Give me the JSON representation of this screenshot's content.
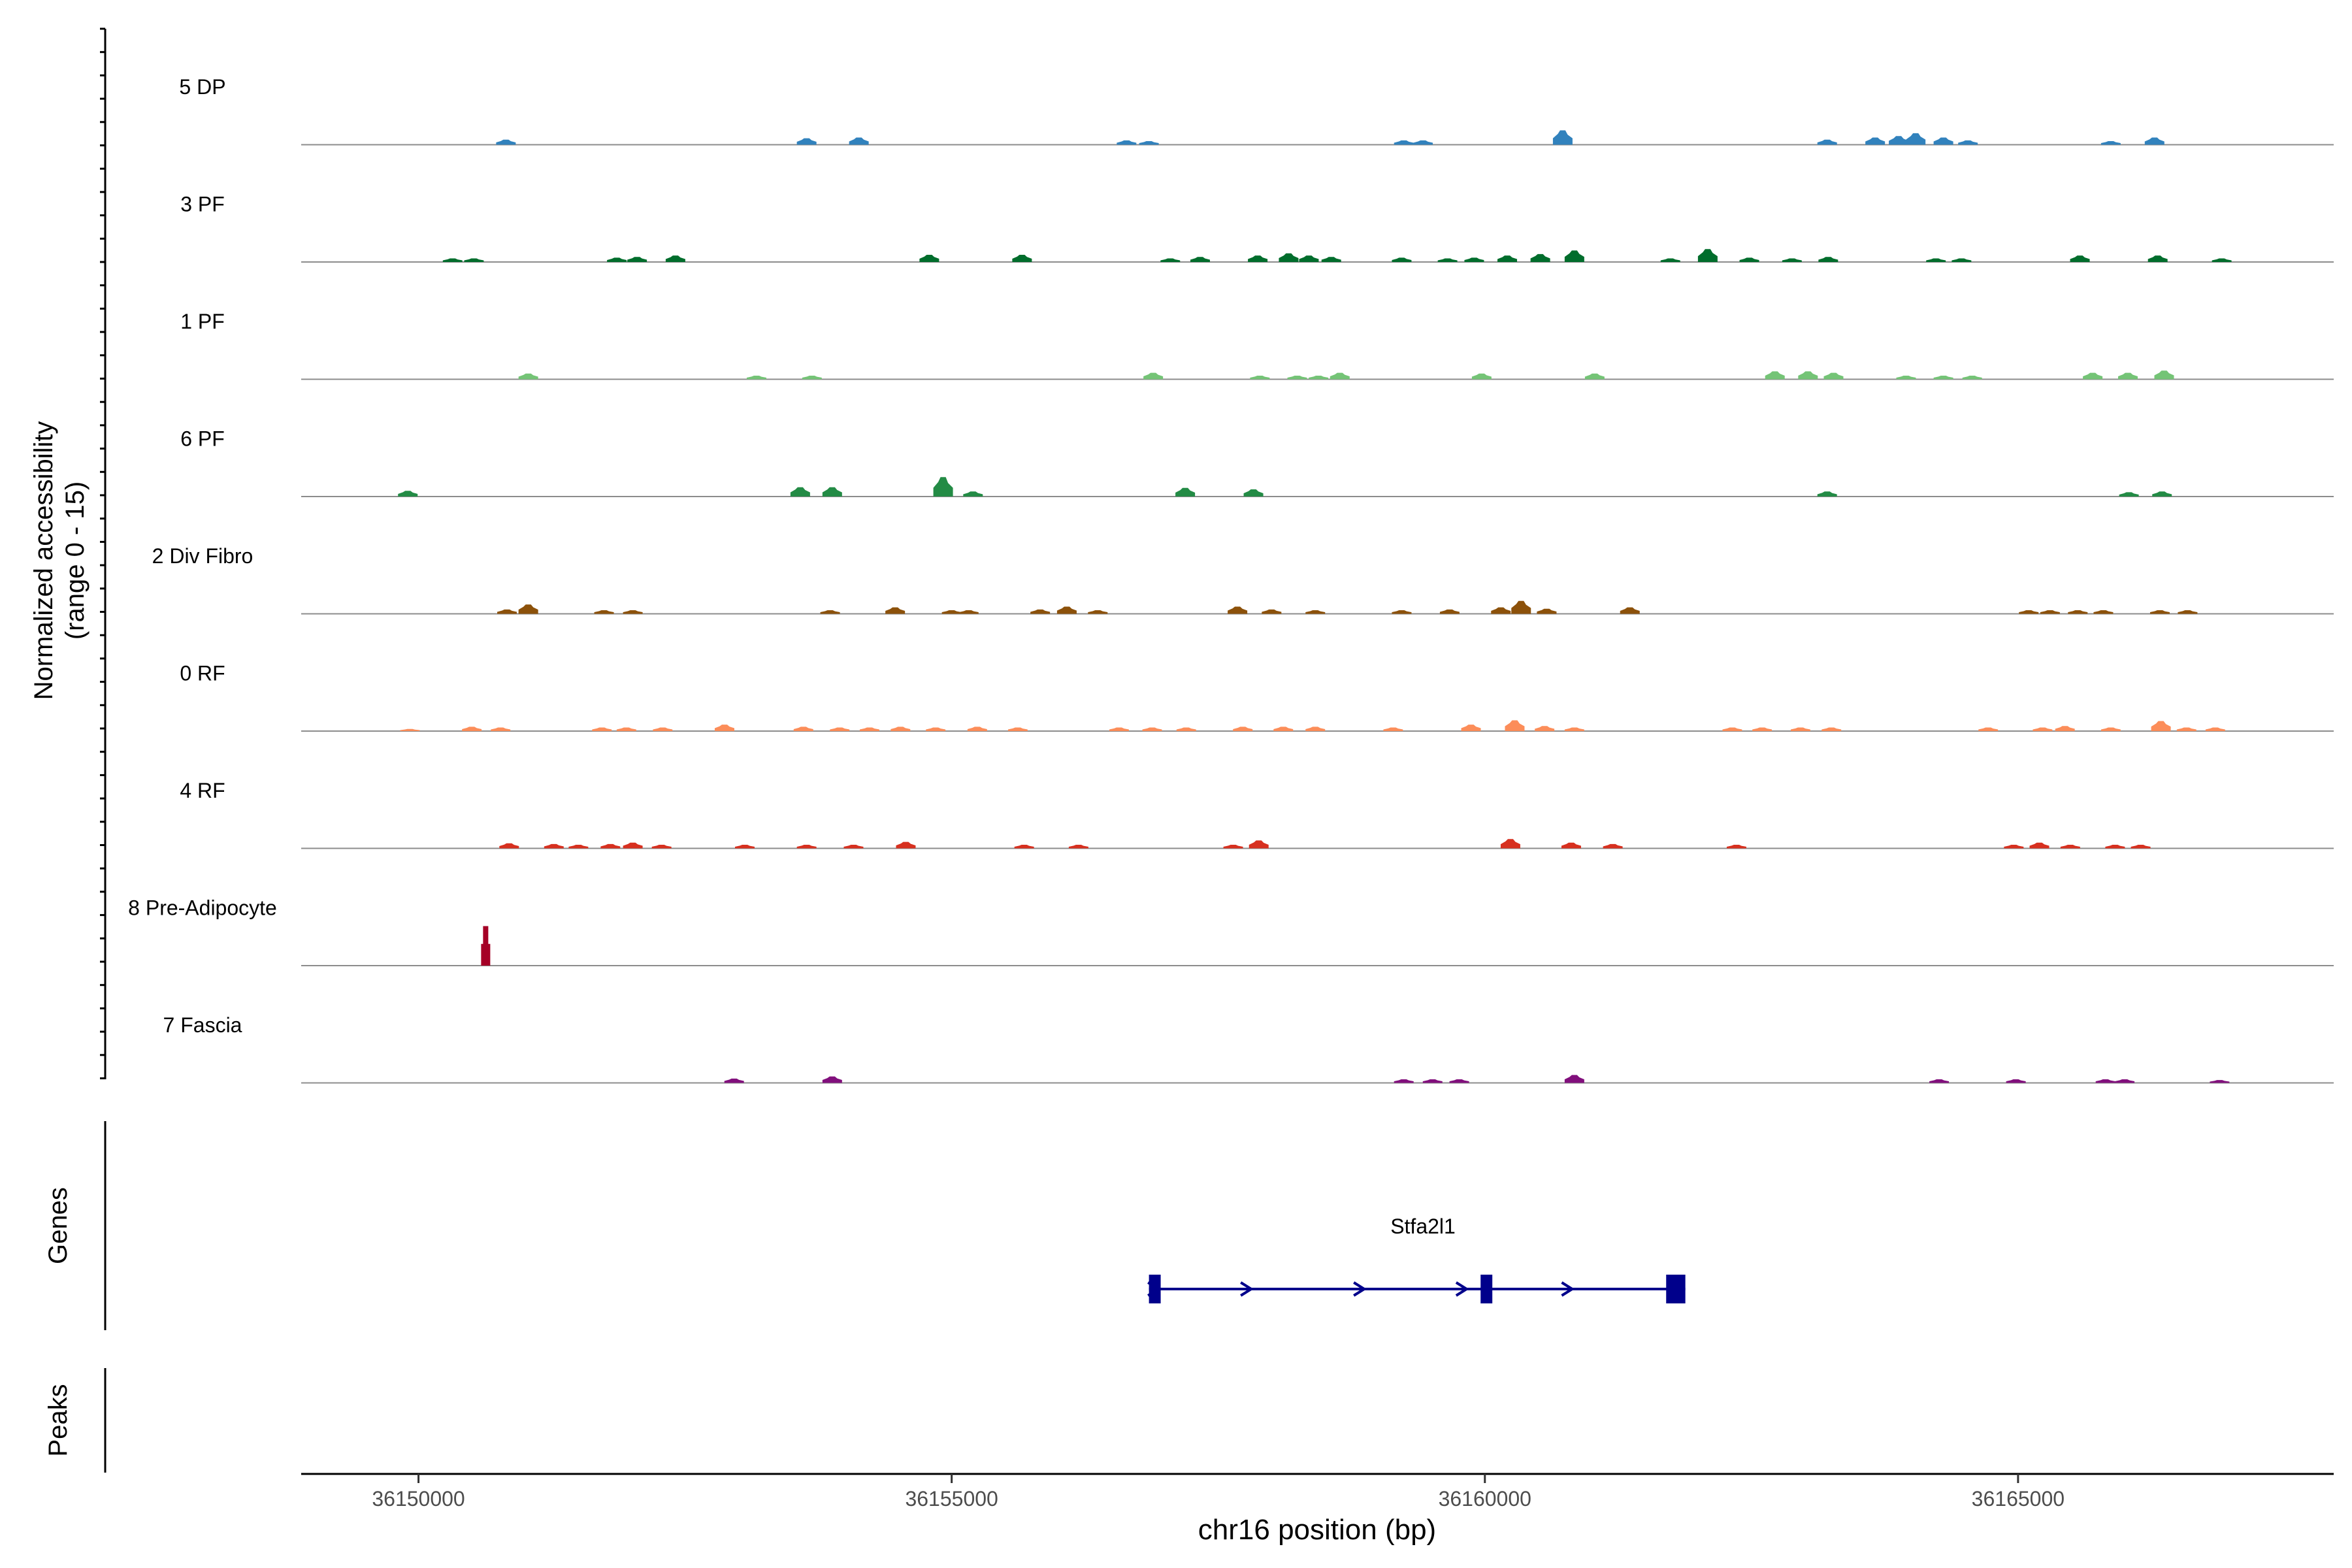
{
  "chart_data": {
    "type": "area",
    "title": "",
    "xlabel": "chr16 position (bp)",
    "ylabel": [
      "Normalized accessibility",
      "(range 0 - 15)"
    ],
    "ylim": [
      0,
      15
    ],
    "xlim": [
      36148900,
      36167960
    ],
    "x_ticks": [
      36150000,
      36155000,
      36160000,
      36165000
    ],
    "x_tick_labels": [
      "36150000",
      "36155000",
      "36160000",
      "36165000"
    ],
    "tracks": [
      {
        "name": "5 DP",
        "color": "#3182bd",
        "peaks": [
          [
            36150820,
            0.7
          ],
          [
            36153640,
            0.9
          ],
          [
            36154130,
            1.0
          ],
          [
            36156640,
            0.6
          ],
          [
            36156850,
            0.5
          ],
          [
            36159240,
            0.6
          ],
          [
            36159420,
            0.6
          ],
          [
            36160730,
            2.0
          ],
          [
            36163210,
            0.7
          ],
          [
            36163660,
            1.0
          ],
          [
            36163880,
            1.2
          ],
          [
            36164040,
            1.6
          ],
          [
            36164300,
            1.0
          ],
          [
            36164530,
            0.6
          ],
          [
            36165870,
            0.5
          ],
          [
            36166280,
            1.0
          ]
        ]
      },
      {
        "name": "3 PF",
        "color": "#006d2c",
        "peaks": [
          [
            36150320,
            0.5
          ],
          [
            36150520,
            0.5
          ],
          [
            36151860,
            0.6
          ],
          [
            36152050,
            0.7
          ],
          [
            36152410,
            0.9
          ],
          [
            36154790,
            1.0
          ],
          [
            36155660,
            1.0
          ],
          [
            36157050,
            0.5
          ],
          [
            36157330,
            0.7
          ],
          [
            36157870,
            0.9
          ],
          [
            36158160,
            1.2
          ],
          [
            36158350,
            0.9
          ],
          [
            36158560,
            0.7
          ],
          [
            36159220,
            0.6
          ],
          [
            36159650,
            0.5
          ],
          [
            36159900,
            0.6
          ],
          [
            36160210,
            0.9
          ],
          [
            36160520,
            1.1
          ],
          [
            36160840,
            1.6
          ],
          [
            36161740,
            0.5
          ],
          [
            36162090,
            1.8
          ],
          [
            36162480,
            0.6
          ],
          [
            36162880,
            0.5
          ],
          [
            36163220,
            0.7
          ],
          [
            36164230,
            0.5
          ],
          [
            36164470,
            0.5
          ],
          [
            36165580,
            0.9
          ],
          [
            36166310,
            0.9
          ],
          [
            36166910,
            0.5
          ]
        ]
      },
      {
        "name": "1 PF",
        "color": "#74c476",
        "peaks": [
          [
            36151030,
            0.8
          ],
          [
            36153170,
            0.5
          ],
          [
            36153690,
            0.5
          ],
          [
            36156890,
            0.9
          ],
          [
            36157890,
            0.5
          ],
          [
            36158240,
            0.5
          ],
          [
            36158440,
            0.5
          ],
          [
            36158640,
            0.9
          ],
          [
            36159970,
            0.8
          ],
          [
            36161030,
            0.8
          ],
          [
            36162720,
            1.1
          ],
          [
            36163030,
            1.1
          ],
          [
            36163270,
            0.9
          ],
          [
            36163950,
            0.5
          ],
          [
            36164300,
            0.5
          ],
          [
            36164570,
            0.5
          ],
          [
            36165700,
            0.9
          ],
          [
            36166030,
            0.9
          ],
          [
            36166370,
            1.2
          ]
        ]
      },
      {
        "name": "6 PF",
        "color": "#238b45",
        "peaks": [
          [
            36149900,
            0.8
          ],
          [
            36153580,
            1.3
          ],
          [
            36153880,
            1.3
          ],
          [
            36154920,
            2.7
          ],
          [
            36155200,
            0.7
          ],
          [
            36157190,
            1.2
          ],
          [
            36157830,
            1.0
          ],
          [
            36163210,
            0.7
          ],
          [
            36166040,
            0.6
          ],
          [
            36166350,
            0.7
          ]
        ]
      },
      {
        "name": "2 Div Fibro",
        "color": "#8c510a",
        "peaks": [
          [
            36150830,
            0.6
          ],
          [
            36151030,
            1.3
          ],
          [
            36151740,
            0.5
          ],
          [
            36152010,
            0.5
          ],
          [
            36153860,
            0.5
          ],
          [
            36154470,
            0.9
          ],
          [
            36155000,
            0.5
          ],
          [
            36155160,
            0.5
          ],
          [
            36155830,
            0.6
          ],
          [
            36156080,
            1.0
          ],
          [
            36156370,
            0.5
          ],
          [
            36157680,
            1.0
          ],
          [
            36158000,
            0.6
          ],
          [
            36158410,
            0.5
          ],
          [
            36159220,
            0.5
          ],
          [
            36159670,
            0.6
          ],
          [
            36160150,
            0.9
          ],
          [
            36160340,
            1.8
          ],
          [
            36160580,
            0.7
          ],
          [
            36161360,
            0.9
          ],
          [
            36165100,
            0.5
          ],
          [
            36165300,
            0.5
          ],
          [
            36165560,
            0.5
          ],
          [
            36165800,
            0.5
          ],
          [
            36166330,
            0.5
          ],
          [
            36166590,
            0.5
          ]
        ]
      },
      {
        "name": "0 RF",
        "color": "#fc8d59",
        "peaks": [
          [
            36149920,
            0.3
          ],
          [
            36150500,
            0.6
          ],
          [
            36150770,
            0.5
          ],
          [
            36151720,
            0.5
          ],
          [
            36151950,
            0.5
          ],
          [
            36152290,
            0.5
          ],
          [
            36152870,
            0.9
          ],
          [
            36153610,
            0.6
          ],
          [
            36153950,
            0.5
          ],
          [
            36154230,
            0.5
          ],
          [
            36154520,
            0.6
          ],
          [
            36154850,
            0.5
          ],
          [
            36155240,
            0.6
          ],
          [
            36155620,
            0.5
          ],
          [
            36156570,
            0.5
          ],
          [
            36156880,
            0.5
          ],
          [
            36157200,
            0.5
          ],
          [
            36157730,
            0.6
          ],
          [
            36158110,
            0.6
          ],
          [
            36158410,
            0.6
          ],
          [
            36159140,
            0.5
          ],
          [
            36159870,
            0.9
          ],
          [
            36160280,
            1.5
          ],
          [
            36160560,
            0.7
          ],
          [
            36160840,
            0.5
          ],
          [
            36162320,
            0.5
          ],
          [
            36162600,
            0.5
          ],
          [
            36162960,
            0.5
          ],
          [
            36163250,
            0.5
          ],
          [
            36164720,
            0.5
          ],
          [
            36165230,
            0.5
          ],
          [
            36165440,
            0.7
          ],
          [
            36165870,
            0.5
          ],
          [
            36166340,
            1.4
          ],
          [
            36166580,
            0.5
          ],
          [
            36166850,
            0.5
          ]
        ]
      },
      {
        "name": "4 RF",
        "color": "#d7301f",
        "peaks": [
          [
            36150850,
            0.7
          ],
          [
            36151270,
            0.6
          ],
          [
            36151500,
            0.5
          ],
          [
            36151800,
            0.6
          ],
          [
            36152010,
            0.8
          ],
          [
            36152280,
            0.5
          ],
          [
            36153060,
            0.5
          ],
          [
            36153640,
            0.5
          ],
          [
            36154080,
            0.5
          ],
          [
            36154570,
            0.9
          ],
          [
            36155680,
            0.5
          ],
          [
            36156190,
            0.5
          ],
          [
            36157640,
            0.5
          ],
          [
            36157880,
            1.1
          ],
          [
            36160240,
            1.3
          ],
          [
            36160810,
            0.8
          ],
          [
            36161200,
            0.6
          ],
          [
            36162360,
            0.5
          ],
          [
            36164960,
            0.5
          ],
          [
            36165200,
            0.8
          ],
          [
            36165490,
            0.5
          ],
          [
            36165910,
            0.5
          ],
          [
            36166150,
            0.5
          ]
        ]
      },
      {
        "name": "8 Pre-Adipocyte",
        "color": "#a50026",
        "peaks": [
          [
            36150630,
            5.5
          ]
        ]
      },
      {
        "name": "7 Fascia",
        "color": "#810f7c",
        "peaks": [
          [
            36152960,
            0.6
          ],
          [
            36153880,
            0.9
          ],
          [
            36159240,
            0.5
          ],
          [
            36159510,
            0.5
          ],
          [
            36159760,
            0.5
          ],
          [
            36160840,
            1.1
          ],
          [
            36164260,
            0.5
          ],
          [
            36164980,
            0.5
          ],
          [
            36165820,
            0.5
          ],
          [
            36166000,
            0.5
          ],
          [
            36166890,
            0.4
          ]
        ]
      }
    ],
    "genes_track": {
      "label": "Genes",
      "gene_name": "Stfa2l1",
      "strand": "+",
      "start": 36156850,
      "end": 36161880,
      "exons": [
        [
          36156850,
          36156960
        ],
        [
          36159960,
          36160070
        ],
        [
          36161700,
          36161880
        ]
      ],
      "intron_arrows": [
        36156890,
        36157760,
        36158820,
        36159780,
        36160770
      ],
      "color": "#00008b"
    },
    "peaks_track": {
      "label": "Peaks",
      "regions": []
    }
  }
}
